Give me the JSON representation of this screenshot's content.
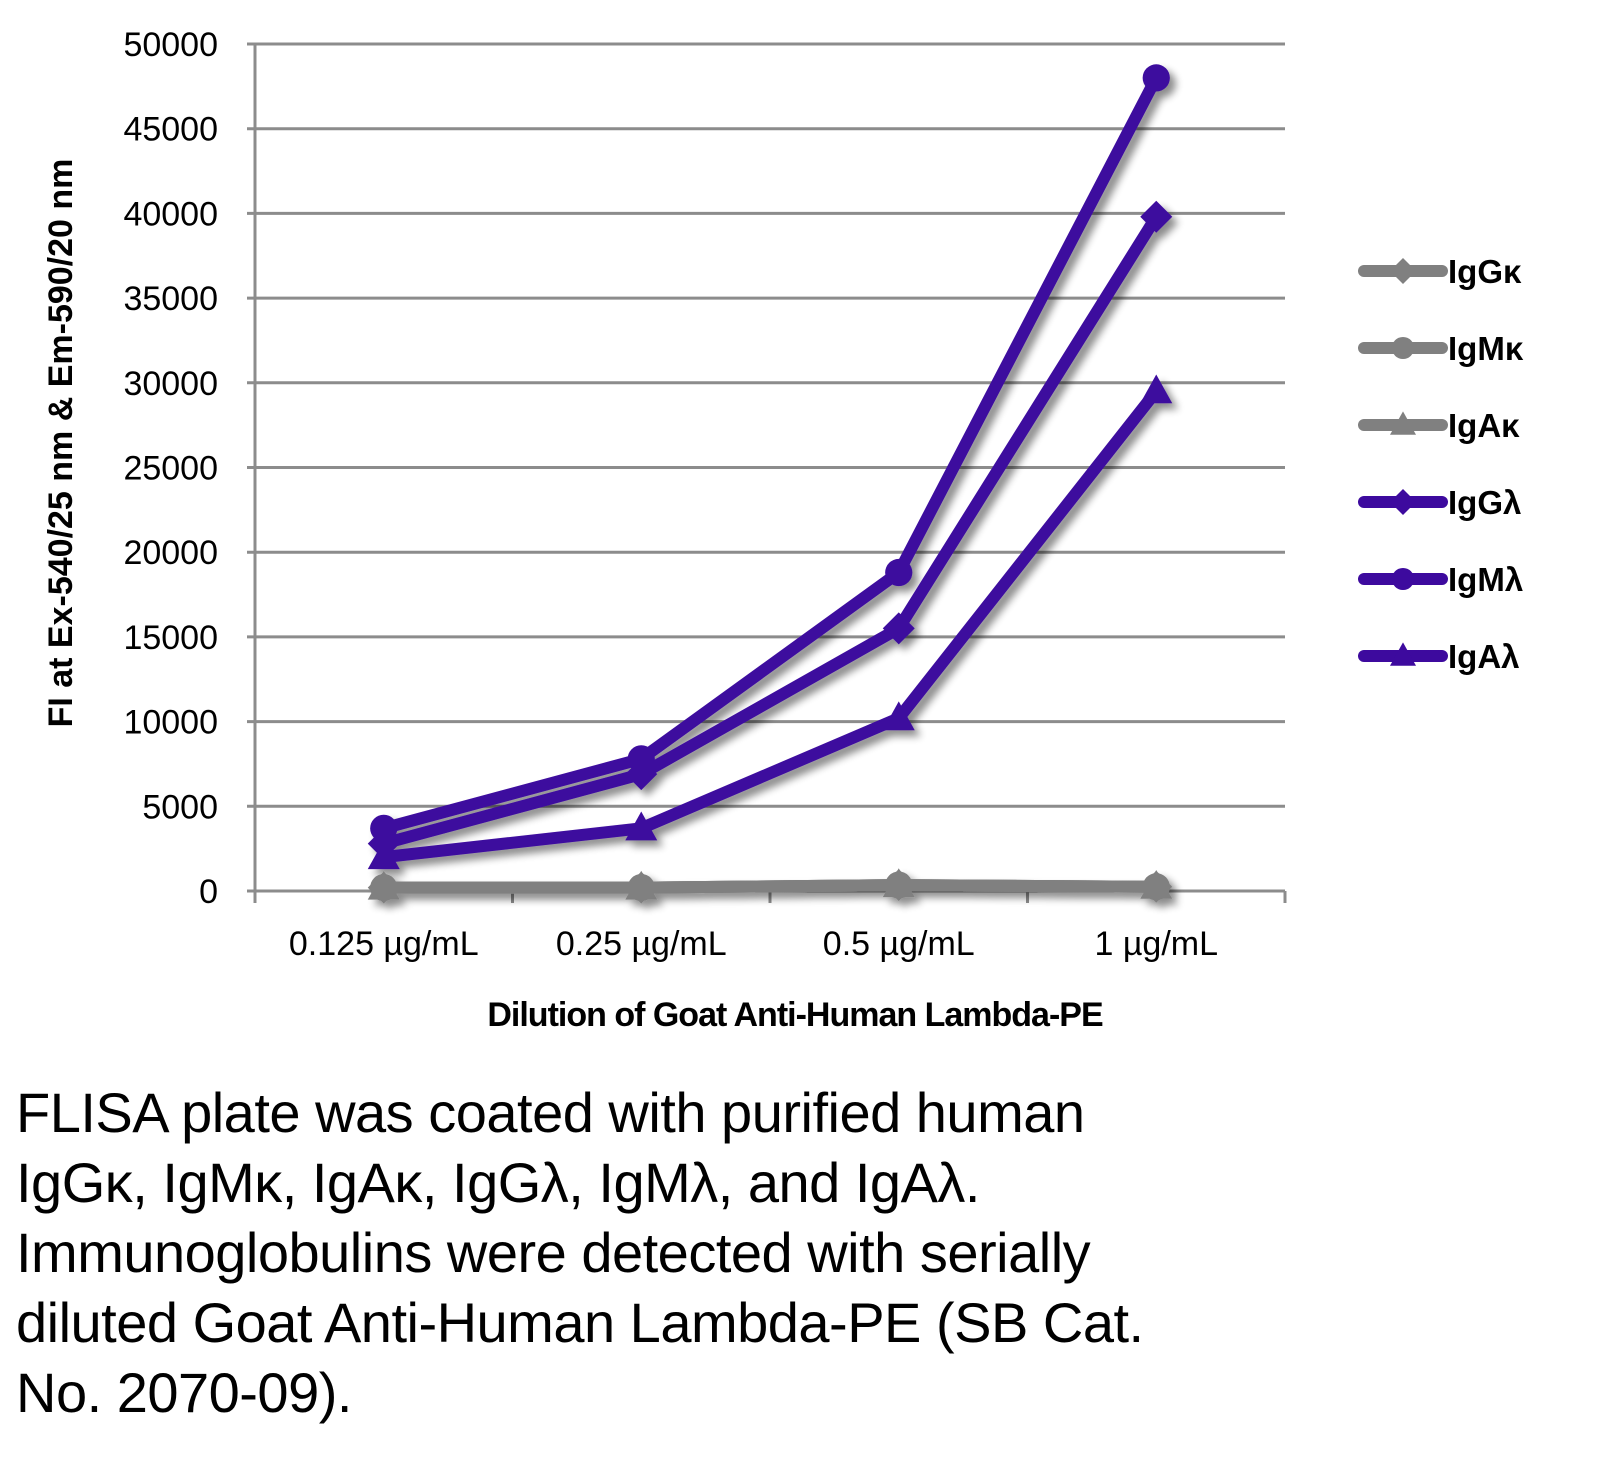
{
  "chart_data": {
    "type": "line",
    "title": "",
    "xlabel": "Dilution of Goat Anti-Human Lambda-PE",
    "ylabel": "FI at Ex-540/25 nm & Em-590/20 nm",
    "categories": [
      "0.125 µg/mL",
      "0.25 µg/mL",
      "0.5 µg/mL",
      "1 µg/mL"
    ],
    "ylim": [
      0,
      50000
    ],
    "yticks": [
      "0",
      "5000",
      "10000",
      "15000",
      "20000",
      "25000",
      "30000",
      "35000",
      "40000",
      "45000",
      "50000"
    ],
    "ytick_values": [
      0,
      5000,
      10000,
      15000,
      20000,
      25000,
      30000,
      35000,
      40000,
      45000,
      50000
    ],
    "grid": true,
    "legend_position": "right",
    "series": [
      {
        "name": "IgGκ",
        "marker": "diamond",
        "color": "#808080",
        "values": [
          200,
          200,
          350,
          250
        ]
      },
      {
        "name": "IgMκ",
        "marker": "circle",
        "color": "#808080",
        "values": [
          200,
          200,
          350,
          250
        ]
      },
      {
        "name": "IgAκ",
        "marker": "triangle",
        "color": "#808080",
        "values": [
          200,
          200,
          350,
          250
        ]
      },
      {
        "name": "IgGλ",
        "marker": "diamond",
        "color": "#3d0a9e",
        "values": [
          2800,
          6900,
          15500,
          39800
        ]
      },
      {
        "name": "IgMλ",
        "marker": "circle",
        "color": "#3d0a9e",
        "values": [
          3700,
          7800,
          18800,
          48000
        ]
      },
      {
        "name": "IgAλ",
        "marker": "triangle",
        "color": "#3d0a9e",
        "values": [
          2000,
          3700,
          10200,
          29500
        ]
      }
    ]
  },
  "caption": {
    "lines": [
      "FLISA plate was coated with purified human",
      "IgGκ, IgMκ, IgAκ, IgGλ, IgMλ, and IgAλ.",
      "Immunoglobulins were detected with serially",
      "diluted Goat Anti-Human Lambda-PE (SB Cat.",
      "No. 2070-09)."
    ]
  }
}
